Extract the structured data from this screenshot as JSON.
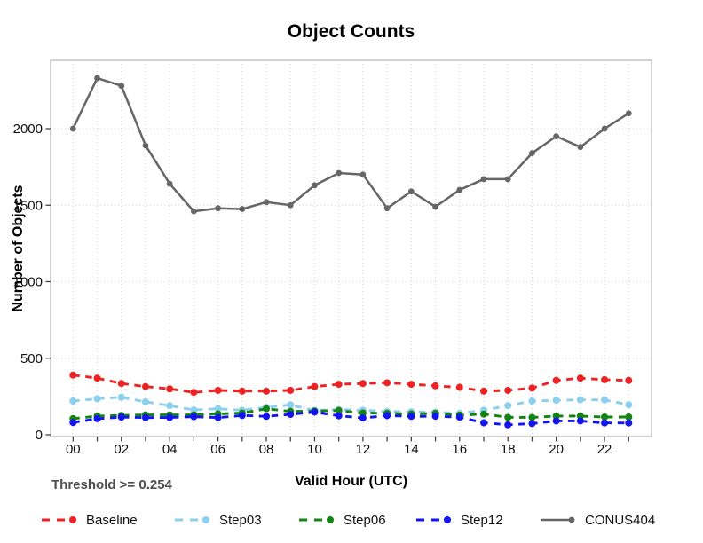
{
  "chart_data": {
    "type": "line",
    "title": "Object Counts",
    "xlabel": "Valid Hour (UTC)",
    "ylabel": "Number of Objects",
    "annotation": "Threshold >= 0.254",
    "grid": true,
    "legend_position": "bottom",
    "x": [
      0,
      1,
      2,
      3,
      4,
      5,
      6,
      7,
      8,
      9,
      10,
      11,
      12,
      13,
      14,
      15,
      16,
      17,
      18,
      19,
      20,
      21,
      22,
      23
    ],
    "x_tick_labels": [
      "00",
      "02",
      "04",
      "06",
      "08",
      "10",
      "12",
      "14",
      "16",
      "18",
      "20",
      "22"
    ],
    "y_ticks": [
      0,
      500,
      1000,
      1500,
      2000
    ],
    "ylim": [
      0,
      2450
    ],
    "series": [
      {
        "name": "Baseline",
        "color": "#ee2222",
        "dash": "dashed",
        "values": [
          390,
          370,
          335,
          315,
          300,
          277,
          290,
          285,
          285,
          290,
          315,
          330,
          335,
          340,
          330,
          320,
          310,
          285,
          290,
          305,
          355,
          370,
          360,
          355
        ]
      },
      {
        "name": "Step03",
        "color": "#8dcfee",
        "dash": "dashed",
        "values": [
          220,
          235,
          245,
          215,
          190,
          162,
          170,
          160,
          180,
          195,
          158,
          165,
          160,
          152,
          150,
          147,
          140,
          160,
          190,
          220,
          225,
          228,
          228,
          196
        ]
      },
      {
        "name": "Step06",
        "color": "#128412",
        "dash": "dashed",
        "values": [
          105,
          122,
          126,
          130,
          130,
          130,
          136,
          142,
          170,
          153,
          155,
          158,
          142,
          140,
          136,
          140,
          128,
          135,
          114,
          113,
          122,
          122,
          116,
          116
        ]
      },
      {
        "name": "Step12",
        "color": "#1414f0",
        "dash": "dashed",
        "values": [
          80,
          105,
          115,
          112,
          113,
          118,
          112,
          126,
          120,
          133,
          148,
          124,
          110,
          125,
          120,
          121,
          115,
          78,
          65,
          73,
          90,
          90,
          77,
          77
        ]
      },
      {
        "name": "CONUS404",
        "color": "#666666",
        "dash": "solid",
        "values": [
          2000,
          2330,
          2280,
          1890,
          1640,
          1460,
          1480,
          1475,
          1520,
          1500,
          1630,
          1710,
          1700,
          1480,
          1590,
          1490,
          1600,
          1670,
          1670,
          1840,
          1950,
          1880,
          2000,
          2100
        ]
      }
    ]
  }
}
